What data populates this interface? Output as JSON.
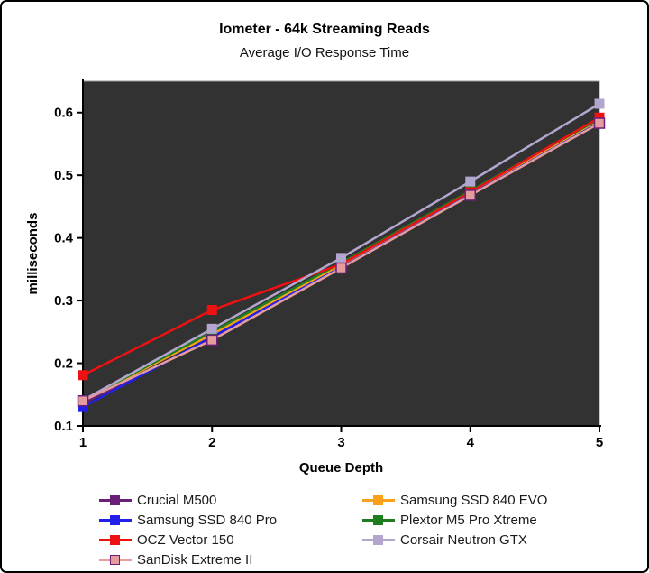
{
  "header": {
    "title": "Iometer - 64k Streaming Reads",
    "subtitle": "Average I/O Response Time"
  },
  "chart_data": {
    "type": "line",
    "title": "Iometer - 64k Streaming Reads",
    "subtitle": "Average I/O Response Time",
    "xlabel": "Queue Depth",
    "ylabel": "milliseconds",
    "x": [
      1,
      2,
      3,
      4,
      5
    ],
    "xlim": [
      1,
      5
    ],
    "ylim": [
      0.1,
      0.65
    ],
    "xticks": [
      1,
      2,
      3,
      4,
      5
    ],
    "yticks": [
      0.1,
      0.2,
      0.3,
      0.4,
      0.5,
      0.6
    ],
    "grid": false,
    "legend_position": "bottom",
    "plot_background": "#323232",
    "axis_color": "#000000",
    "series": [
      {
        "name": "Crucial M500",
        "color": "#6A2078",
        "values": [
          0.136,
          0.24,
          0.354,
          0.469,
          0.585
        ]
      },
      {
        "name": "Samsung SSD 840 EVO",
        "color": "#F9A11B",
        "values": [
          0.141,
          0.246,
          0.357,
          0.472,
          0.588
        ]
      },
      {
        "name": "Samsung SSD 840 Pro",
        "color": "#2020E8",
        "values": [
          0.13,
          0.242,
          0.353,
          0.469,
          0.584
        ]
      },
      {
        "name": "Plextor M5 Pro Xtreme",
        "color": "#1E7D1E",
        "values": [
          0.141,
          0.25,
          0.36,
          0.475,
          0.59
        ]
      },
      {
        "name": "OCZ Vector 150",
        "color": "#EE1111",
        "values": [
          0.181,
          0.285,
          0.358,
          0.473,
          0.592
        ]
      },
      {
        "name": "Corsair Neutron GTX",
        "color": "#B3A6CE",
        "values": [
          0.141,
          0.255,
          0.368,
          0.49,
          0.614
        ]
      },
      {
        "name": "SanDisk Extreme II",
        "color": "#E49C9C",
        "marker_edge": "#6A2078",
        "values": [
          0.14,
          0.237,
          0.352,
          0.468,
          0.583
        ]
      }
    ]
  }
}
